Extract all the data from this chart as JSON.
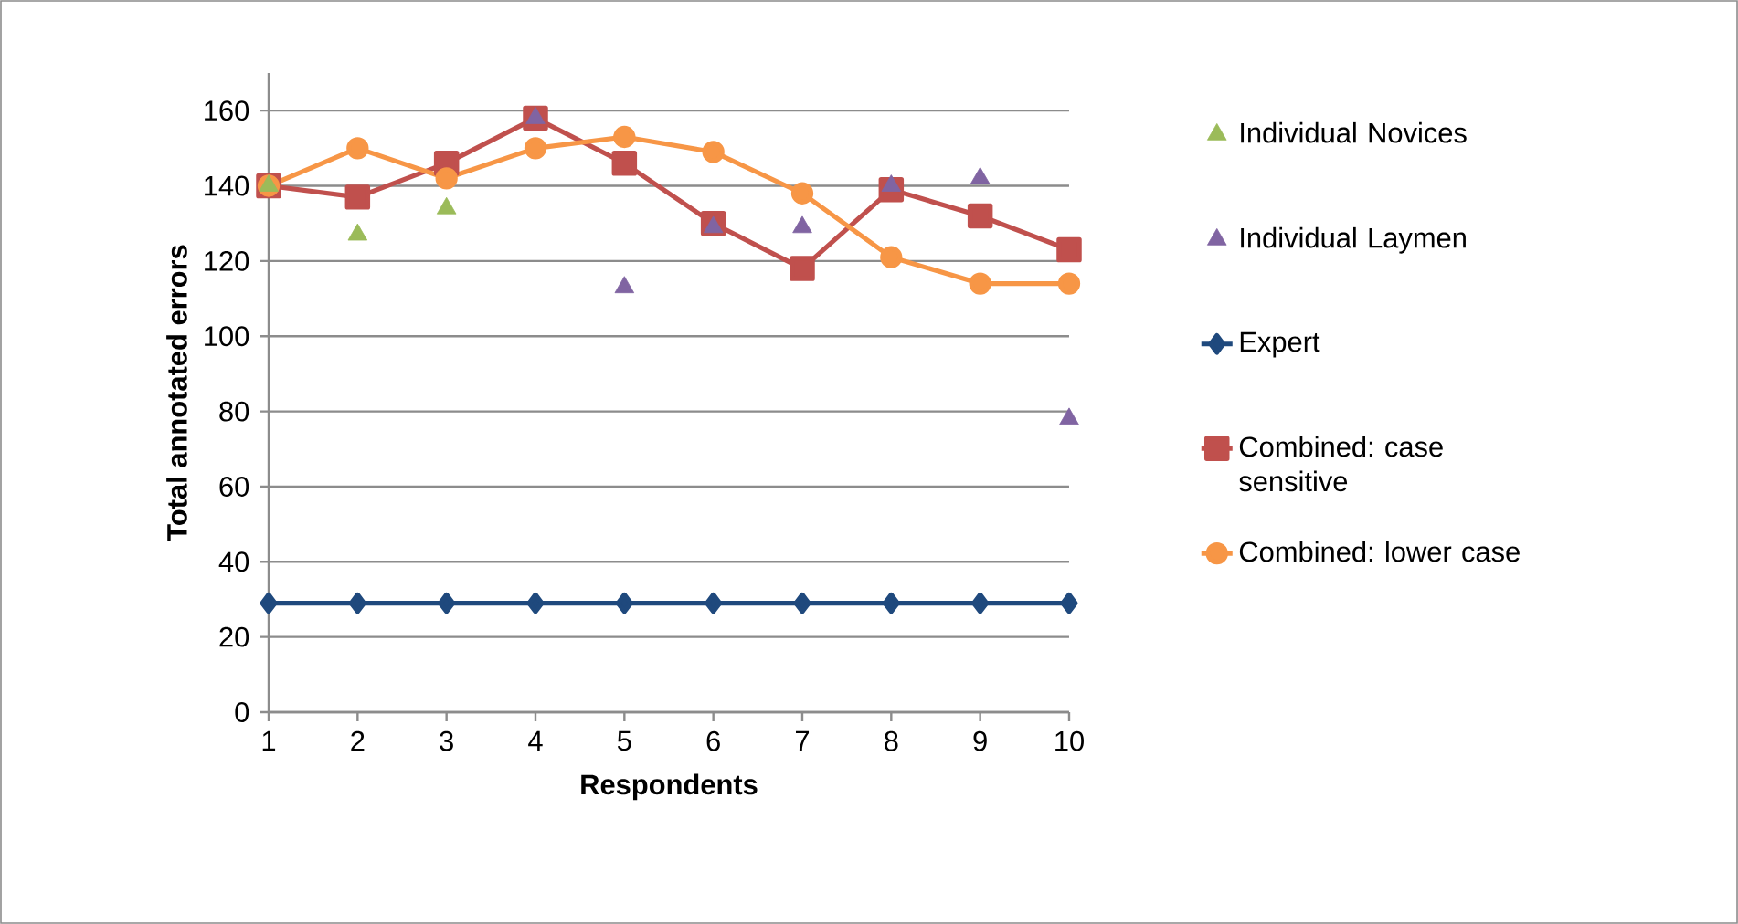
{
  "chart_data": {
    "type": "line",
    "xlabel": "Respondents",
    "ylabel": "Total annotated errors",
    "categories": [
      "1",
      "2",
      "3",
      "4",
      "5",
      "6",
      "7",
      "8",
      "9",
      "10"
    ],
    "series": [
      {
        "name": "Individual Novices",
        "type": "scatter",
        "marker": "triangle",
        "color": "#9bbb59",
        "values": [
          140,
          127,
          134,
          null,
          null,
          null,
          null,
          null,
          null,
          null
        ]
      },
      {
        "name": "Individual Laymen",
        "type": "scatter",
        "marker": "triangle",
        "color": "#8064a2",
        "values": [
          null,
          null,
          null,
          158,
          113,
          129,
          129,
          140,
          142,
          78
        ]
      },
      {
        "name": "Expert",
        "marker": "diamond",
        "color": "#1f497d",
        "values": [
          29,
          29,
          29,
          29,
          29,
          29,
          29,
          29,
          29,
          29
        ]
      },
      {
        "name": "Combined: case sensitive",
        "marker": "square",
        "color": "#c0504d",
        "values": [
          140,
          137,
          146,
          158,
          146,
          130,
          118,
          139,
          132,
          123
        ]
      },
      {
        "name": "Combined: lower case",
        "marker": "circle",
        "color": "#f79646",
        "values": [
          140,
          150,
          142,
          150,
          153,
          149,
          138,
          121,
          114,
          114
        ]
      }
    ],
    "ylim": [
      0,
      170
    ],
    "yticks": [
      0,
      20,
      40,
      60,
      80,
      100,
      120,
      140,
      160
    ],
    "grid": "y",
    "legend": "right"
  }
}
